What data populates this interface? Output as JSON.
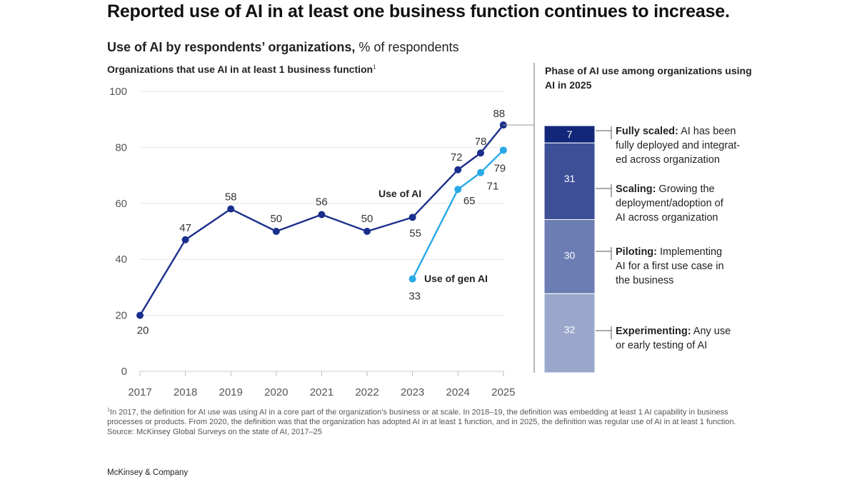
{
  "header": {
    "title": "Reported use of AI in at least one business function continues to increase.",
    "subtitle_bold": "Use of AI by respondents’ organizations,",
    "subtitle_rest": " % of respondents",
    "left_heading": "Organizations that use AI in at least 1 business function",
    "left_heading_sup": "1",
    "right_heading": "Phase of AI use among organizations using AI in 2025"
  },
  "chart_data": [
    {
      "type": "line",
      "title": "Organizations that use AI in at least 1 business function",
      "x_ticks": [
        "2017",
        "2018",
        "2019",
        "2020",
        "2021",
        "2022",
        "2023",
        "2024",
        "2025"
      ],
      "y_ticks": [
        "0",
        "20",
        "40",
        "60",
        "80",
        "100"
      ],
      "ylim": [
        0,
        100
      ],
      "grid": true,
      "series": [
        {
          "name": "Use of AI",
          "color": "#1a2f8c",
          "x": [
            2017,
            2018,
            2019,
            2020,
            2021,
            2022,
            2023,
            2024,
            2024.5,
            2025
          ],
          "values": [
            20,
            47,
            58,
            50,
            56,
            50,
            55,
            72,
            78,
            88
          ],
          "labels": [
            "20",
            "47",
            "58",
            "50",
            "56",
            "50",
            "55",
            "72",
            "78",
            "88"
          ]
        },
        {
          "name": "Use of gen AI",
          "color": "#27a9e6",
          "x": [
            2023,
            2024,
            2024.5,
            2025
          ],
          "values": [
            33,
            65,
            71,
            79
          ],
          "labels": [
            "33",
            "65",
            "71",
            "79"
          ]
        }
      ]
    },
    {
      "type": "bar",
      "stacked": true,
      "title": "Phase of AI use among organizations using AI in 2025",
      "segments": [
        {
          "name": "Fully scaled",
          "value": 7,
          "label": "7",
          "color": "#13277a",
          "desc_bold": "Fully scaled:",
          "desc_lines": [
            " AI has been",
            "fully deployed and integrat-",
            "ed across organization"
          ]
        },
        {
          "name": "Scaling",
          "value": 31,
          "label": "31",
          "color": "#3c4f97",
          "desc_bold": "Scaling:",
          "desc_lines": [
            " Growing the",
            "deployment/adoption of",
            "AI across organization"
          ]
        },
        {
          "name": "Piloting",
          "value": 30,
          "label": "30",
          "color": "#6b7db3",
          "desc_bold": "Piloting:",
          "desc_lines": [
            " Implementing",
            "AI for a first use case in",
            "the business"
          ]
        },
        {
          "name": "Experimenting",
          "value": 32,
          "label": "32",
          "color": "#9aa7cb",
          "desc_bold": "Experimenting:",
          "desc_lines": [
            " Any use",
            "or early testing of AI"
          ]
        }
      ]
    }
  ],
  "footer": {
    "note_sup": "1",
    "note": "In 2017, the definition for AI use was using AI in a core part of the organization’s business or at scale. In 2018–19, the definition was embedding at least 1 AI capability in business processes or products. From 2020, the definition was that the organization has adopted AI in at least 1 function, and in 2025, the definition was regular use of AI in at least 1 function.",
    "source": "Source: McKinsey Global Surveys on the state of AI, 2017–25",
    "brand": "McKinsey & Company"
  }
}
